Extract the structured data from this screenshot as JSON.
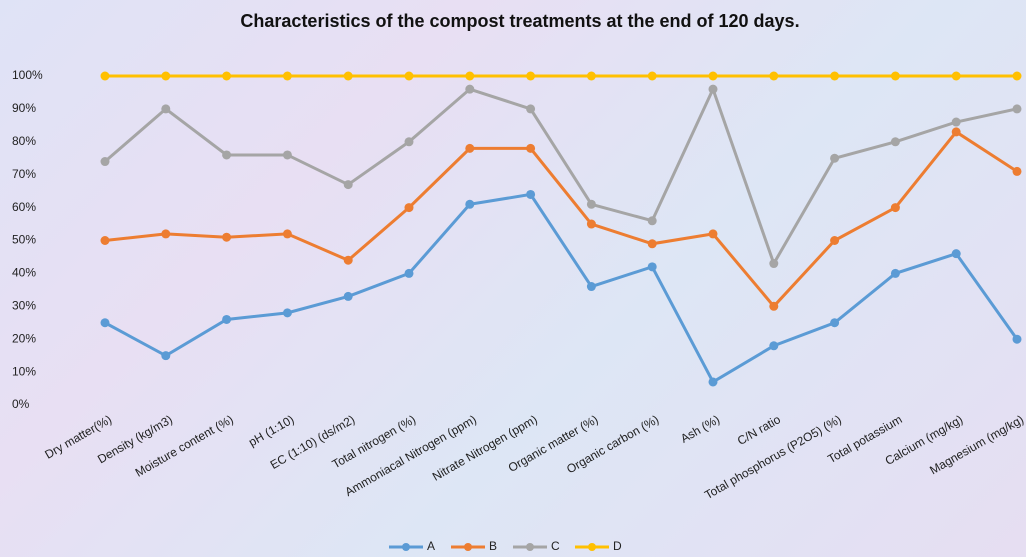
{
  "chart_data": {
    "type": "line",
    "title": "Characteristics of the compost treatments at the end of 120 days.",
    "categories": [
      "Dry matter(%)",
      "Density (kg/m3)",
      "Moisture content (%)",
      "pH (1:10)",
      "EC (1:10) (ds/m2)",
      "Total nitrogen (%)",
      "Ammoniacal Nitrogen (ppm)",
      "Nitrate Nitrogen (ppm)",
      "Organic matter (%)",
      "Organic carbon (%)",
      "Ash (%)",
      "C/N ratio",
      "Total phosphorus (P2O5) (%)",
      "Total potassium",
      "Calcium (mg/kg)",
      "Magnesium (mg/kg)"
    ],
    "series": [
      {
        "name": "A",
        "color": "#5b9bd5",
        "values": [
          25,
          15,
          26,
          28,
          33,
          40,
          61,
          64,
          36,
          42,
          7,
          18,
          25,
          40,
          46,
          20
        ]
      },
      {
        "name": "B",
        "color": "#ed7d31",
        "values": [
          50,
          52,
          51,
          52,
          44,
          60,
          78,
          78,
          55,
          49,
          52,
          30,
          50,
          60,
          83,
          71
        ]
      },
      {
        "name": "C",
        "color": "#a5a5a5",
        "values": [
          74,
          90,
          76,
          76,
          67,
          80,
          96,
          90,
          61,
          56,
          96,
          43,
          75,
          80,
          86,
          90
        ]
      },
      {
        "name": "D",
        "color": "#ffc000",
        "values": [
          100,
          100,
          100,
          100,
          100,
          100,
          100,
          100,
          100,
          100,
          100,
          100,
          100,
          100,
          100,
          100
        ]
      }
    ],
    "ylim": [
      0,
      100
    ],
    "yticks": [
      {
        "value": 0,
        "label": "0%"
      },
      {
        "value": 10,
        "label": "10%"
      },
      {
        "value": 20,
        "label": "20%"
      },
      {
        "value": 30,
        "label": "30%"
      },
      {
        "value": 40,
        "label": "40%"
      },
      {
        "value": 50,
        "label": "50%"
      },
      {
        "value": 60,
        "label": "60%"
      },
      {
        "value": 70,
        "label": "70%"
      },
      {
        "value": 80,
        "label": "80%"
      },
      {
        "value": 90,
        "label": "90%"
      },
      {
        "value": 100,
        "label": "100%"
      }
    ],
    "grid": false,
    "legend": "bottom"
  }
}
